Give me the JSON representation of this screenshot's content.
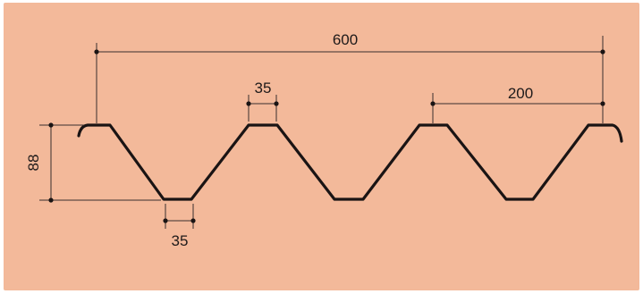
{
  "diagram": {
    "dimensions": {
      "overall_width": "600",
      "pitch": "200",
      "height": "88",
      "top_flat": "35",
      "bottom_flat": "35"
    },
    "colors": {
      "background": "#f3b99a",
      "line": "#1a1414"
    }
  }
}
